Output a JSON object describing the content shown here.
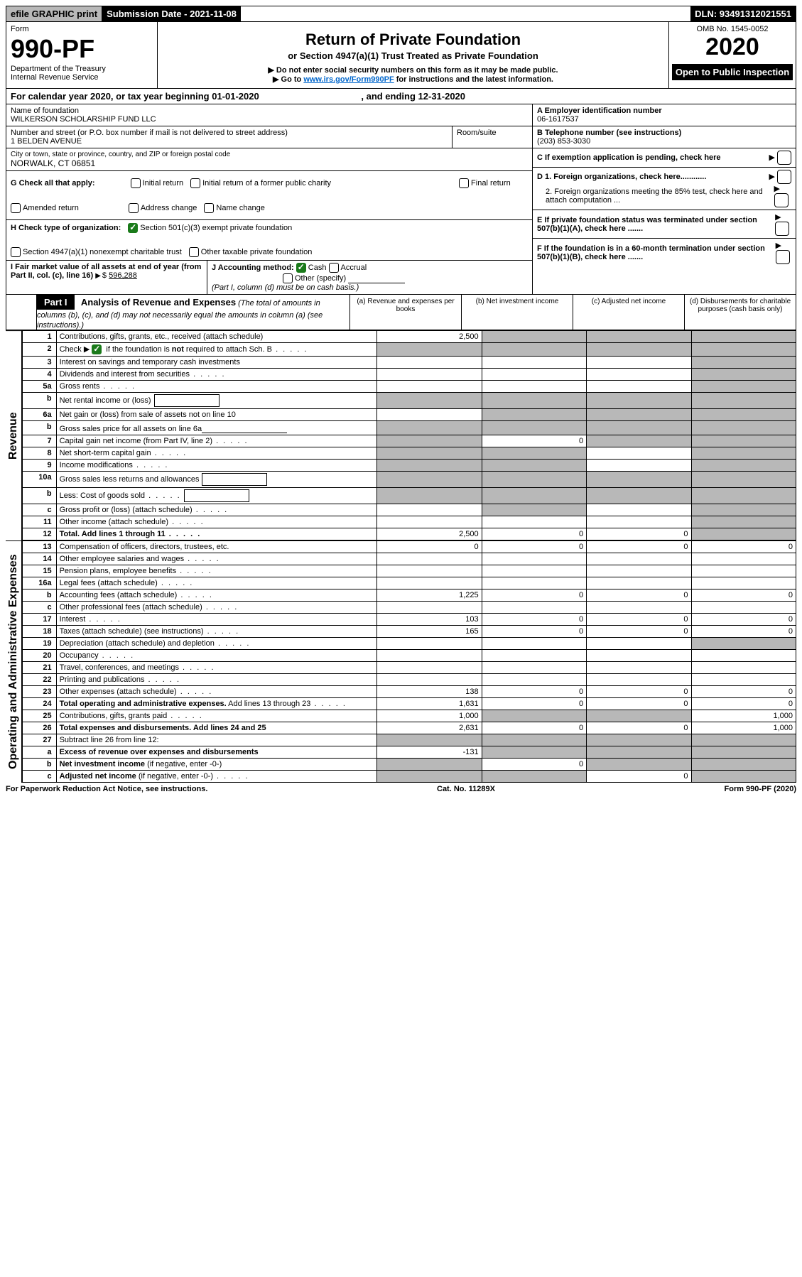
{
  "topbar": {
    "efile": "efile GRAPHIC print",
    "submission": "Submission Date - 2021-11-08",
    "dln": "DLN: 93491312021551"
  },
  "header": {
    "form_label": "Form",
    "form_number": "990-PF",
    "dept": "Department of the Treasury",
    "irs": "Internal Revenue Service",
    "title": "Return of Private Foundation",
    "subtitle": "or Section 4947(a)(1) Trust Treated as Private Foundation",
    "note1": "▶ Do not enter social security numbers on this form as it may be made public.",
    "note2_pre": "▶ Go to ",
    "note2_link": "www.irs.gov/Form990PF",
    "note2_post": " for instructions and the latest information.",
    "omb": "OMB No. 1545-0052",
    "year": "2020",
    "open": "Open to Public Inspection"
  },
  "calyear": "For calendar year 2020, or tax year beginning 01-01-2020",
  "calyear_end": ", and ending 12-31-2020",
  "foundation": {
    "name_label": "Name of foundation",
    "name": "WILKERSON SCHOLARSHIP FUND LLC",
    "addr_label": "Number and street (or P.O. box number if mail is not delivered to street address)",
    "addr": "1 BELDEN AVENUE",
    "room_label": "Room/suite",
    "city_label": "City or town, state or province, country, and ZIP or foreign postal code",
    "city": "NORWALK, CT  06851"
  },
  "right_info": {
    "a_label": "A Employer identification number",
    "a_value": "06-1617537",
    "b_label": "B Telephone number (see instructions)",
    "b_value": "(203) 853-3030",
    "c_label": "C If exemption application is pending, check here",
    "d1": "D 1. Foreign organizations, check here............",
    "d2": "2. Foreign organizations meeting the 85% test, check here and attach computation ...",
    "e": "E  If private foundation status was terminated under section 507(b)(1)(A), check here .......",
    "f": "F  If the foundation is in a 60-month termination under section 507(b)(1)(B), check here ......."
  },
  "checks": {
    "g_label": "G Check all that apply:",
    "g_opts": [
      "Initial return",
      "Initial return of a former public charity",
      "Final return",
      "Amended return",
      "Address change",
      "Name change"
    ],
    "h_label": "H Check type of organization:",
    "h_opts": [
      "Section 501(c)(3) exempt private foundation",
      "Section 4947(a)(1) nonexempt charitable trust",
      "Other taxable private foundation"
    ],
    "i_label": "I Fair market value of all assets at end of year (from Part II, col. (c), line 16)",
    "i_value": "596,288",
    "j_label": "J Accounting method:",
    "j_opts": [
      "Cash",
      "Accrual",
      "Other (specify)"
    ],
    "j_note": "(Part I, column (d) must be on cash basis.)"
  },
  "part1": {
    "label": "Part I",
    "title": "Analysis of Revenue and Expenses",
    "note": "(The total of amounts in columns (b), (c), and (d) may not necessarily equal the amounts in column (a) (see instructions).)",
    "col_a": "(a)  Revenue and expenses per books",
    "col_b": "(b)  Net investment income",
    "col_c": "(c)  Adjusted net income",
    "col_d": "(d)  Disbursements for charitable purposes (cash basis only)"
  },
  "side_labels": {
    "revenue": "Revenue",
    "opex": "Operating and Administrative Expenses"
  },
  "rows": [
    {
      "n": "1",
      "d": "Contributions, gifts, grants, etc., received (attach schedule)",
      "a": "2,500",
      "shade_b": true,
      "shade_c": true,
      "shade_d": true
    },
    {
      "n": "2",
      "d": "Check ▶ ☑ if the foundation is <b>not</b> required to attach Sch. B",
      "dots": true,
      "shade_a": true,
      "shade_b": true,
      "shade_c": true,
      "shade_d": true,
      "raw": true
    },
    {
      "n": "3",
      "d": "Interest on savings and temporary cash investments",
      "shade_d": true
    },
    {
      "n": "4",
      "d": "Dividends and interest from securities",
      "dots": true,
      "shade_d": true
    },
    {
      "n": "5a",
      "d": "Gross rents",
      "dots": true,
      "shade_d": true
    },
    {
      "n": "b",
      "d": "Net rental income or (loss)",
      "inline_box": true,
      "shade_a": true,
      "shade_b": true,
      "shade_c": true,
      "shade_d": true
    },
    {
      "n": "6a",
      "d": "Net gain or (loss) from sale of assets not on line 10",
      "shade_b": true,
      "shade_c": true,
      "shade_d": true
    },
    {
      "n": "b",
      "d": "Gross sales price for all assets on line 6a",
      "underline": true,
      "shade_a": true,
      "shade_b": true,
      "shade_c": true,
      "shade_d": true
    },
    {
      "n": "7",
      "d": "Capital gain net income (from Part IV, line 2)",
      "dots": true,
      "shade_a": true,
      "b": "0",
      "shade_c": true,
      "shade_d": true
    },
    {
      "n": "8",
      "d": "Net short-term capital gain",
      "dots": true,
      "shade_a": true,
      "shade_b": true,
      "shade_d": true
    },
    {
      "n": "9",
      "d": "Income modifications",
      "dots": true,
      "shade_a": true,
      "shade_b": true,
      "shade_d": true
    },
    {
      "n": "10a",
      "d": "Gross sales less returns and allowances",
      "inline_box": true,
      "shade_a": true,
      "shade_b": true,
      "shade_c": true,
      "shade_d": true
    },
    {
      "n": "b",
      "d": "Less: Cost of goods sold",
      "dots": true,
      "inline_box": true,
      "shade_a": true,
      "shade_b": true,
      "shade_c": true,
      "shade_d": true
    },
    {
      "n": "c",
      "d": "Gross profit or (loss) (attach schedule)",
      "dots": true,
      "shade_b": true,
      "shade_d": true
    },
    {
      "n": "11",
      "d": "Other income (attach schedule)",
      "dots": true,
      "shade_d": true
    },
    {
      "n": "12",
      "d": "<b>Total.</b> Add lines 1 through 11",
      "dots": true,
      "a": "2,500",
      "b": "0",
      "c": "0",
      "shade_d": true,
      "bold": true
    }
  ],
  "rows2": [
    {
      "n": "13",
      "d": "Compensation of officers, directors, trustees, etc.",
      "a": "0",
      "b": "0",
      "c": "0",
      "dd": "0"
    },
    {
      "n": "14",
      "d": "Other employee salaries and wages",
      "dots": true
    },
    {
      "n": "15",
      "d": "Pension plans, employee benefits",
      "dots": true
    },
    {
      "n": "16a",
      "d": "Legal fees (attach schedule)",
      "dots": true
    },
    {
      "n": "b",
      "d": "Accounting fees (attach schedule)",
      "dots": true,
      "a": "1,225",
      "b": "0",
      "c": "0",
      "dd": "0"
    },
    {
      "n": "c",
      "d": "Other professional fees (attach schedule)",
      "dots": true
    },
    {
      "n": "17",
      "d": "Interest",
      "dots": true,
      "a": "103",
      "b": "0",
      "c": "0",
      "dd": "0"
    },
    {
      "n": "18",
      "d": "Taxes (attach schedule) (see instructions)",
      "dots": true,
      "a": "165",
      "b": "0",
      "c": "0",
      "dd": "0"
    },
    {
      "n": "19",
      "d": "Depreciation (attach schedule) and depletion",
      "dots": true,
      "shade_d": true
    },
    {
      "n": "20",
      "d": "Occupancy",
      "dots": true
    },
    {
      "n": "21",
      "d": "Travel, conferences, and meetings",
      "dots": true
    },
    {
      "n": "22",
      "d": "Printing and publications",
      "dots": true
    },
    {
      "n": "23",
      "d": "Other expenses (attach schedule)",
      "dots": true,
      "a": "138",
      "b": "0",
      "c": "0",
      "dd": "0"
    },
    {
      "n": "24",
      "d": "<b>Total operating and administrative expenses.</b> Add lines 13 through 23",
      "dots": true,
      "a": "1,631",
      "b": "0",
      "c": "0",
      "dd": "0",
      "raw": true
    },
    {
      "n": "25",
      "d": "Contributions, gifts, grants paid",
      "dots": true,
      "a": "1,000",
      "shade_b": true,
      "shade_c": true,
      "dd": "1,000"
    },
    {
      "n": "26",
      "d": "<b>Total expenses and disbursements.</b> Add lines 24 and 25",
      "a": "2,631",
      "b": "0",
      "c": "0",
      "dd": "1,000",
      "raw": true,
      "bold": true
    },
    {
      "n": "27",
      "d": "Subtract line 26 from line 12:",
      "shade_a": true,
      "shade_b": true,
      "shade_c": true,
      "shade_d": true
    },
    {
      "n": "a",
      "d": "<b>Excess of revenue over expenses and disbursements</b>",
      "a": "-131",
      "shade_b": true,
      "shade_c": true,
      "shade_d": true,
      "raw": true
    },
    {
      "n": "b",
      "d": "<b>Net investment income</b> (if negative, enter -0-)",
      "shade_a": true,
      "b": "0",
      "shade_c": true,
      "shade_d": true,
      "raw": true
    },
    {
      "n": "c",
      "d": "<b>Adjusted net income</b> (if negative, enter -0-)",
      "dots": true,
      "shade_a": true,
      "shade_b": true,
      "c": "0",
      "shade_d": true,
      "raw": true
    }
  ],
  "footer": {
    "left": "For Paperwork Reduction Act Notice, see instructions.",
    "mid": "Cat. No. 11289X",
    "right": "Form 990-PF (2020)"
  },
  "colors": {
    "shade": "#b8b8b8",
    "link": "#0066cc",
    "check_green": "#1a7a1a"
  }
}
